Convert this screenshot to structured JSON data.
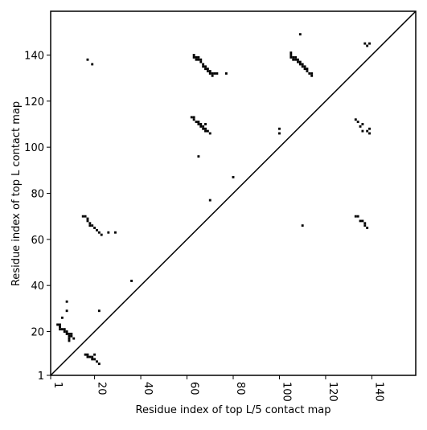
{
  "chart_data": {
    "type": "scatter",
    "xlabel": "Residue index of top L/5 contact map",
    "ylabel": "Residue index of top L contact map",
    "color": "#000000",
    "xlim": [
      1,
      159
    ],
    "ylim": [
      1,
      159
    ],
    "xticks": [
      1,
      20,
      40,
      60,
      80,
      100,
      120,
      140
    ],
    "yticks": [
      1,
      20,
      40,
      60,
      80,
      100,
      120,
      140
    ],
    "x": [
      63,
      64,
      64,
      65,
      66,
      67,
      68,
      68,
      69,
      70,
      71,
      72,
      73,
      77,
      63,
      65,
      66,
      67,
      69,
      70,
      71,
      105,
      105,
      105,
      106,
      107,
      107,
      108,
      108,
      109,
      109,
      110,
      110,
      111,
      111,
      112,
      112,
      113,
      114,
      114,
      106,
      109,
      17,
      19,
      137,
      138,
      139,
      62,
      63,
      63,
      64,
      65,
      65,
      66,
      66,
      67,
      67,
      68,
      68,
      68,
      69,
      70,
      65,
      80,
      70,
      100,
      100,
      133,
      134,
      136,
      135,
      136,
      138,
      139,
      139,
      15,
      16,
      17,
      17,
      18,
      18,
      19,
      20,
      21,
      22,
      23,
      26,
      29,
      36,
      110,
      133,
      134,
      135,
      136,
      137,
      137,
      138,
      8,
      8,
      6,
      5,
      4,
      5,
      5,
      6,
      7,
      7,
      8,
      8,
      9,
      10,
      9,
      10,
      9,
      11,
      9,
      16,
      17,
      17,
      18,
      19,
      19,
      20,
      20,
      21,
      22,
      22
    ],
    "values": [
      139,
      139,
      138,
      138,
      137,
      136,
      135,
      134,
      134,
      133,
      132,
      132,
      132,
      132,
      140,
      139,
      138,
      135,
      133,
      132,
      131,
      141,
      140,
      139,
      139,
      139,
      138,
      138,
      137,
      137,
      136,
      136,
      135,
      135,
      134,
      134,
      133,
      132,
      132,
      131,
      138,
      149,
      138,
      136,
      145,
      144,
      145,
      113,
      113,
      112,
      111,
      111,
      110,
      110,
      109,
      109,
      108,
      108,
      107,
      110,
      107,
      106,
      96,
      87,
      77,
      108,
      106,
      112,
      111,
      110,
      109,
      107,
      107,
      108,
      106,
      70,
      70,
      69,
      68,
      67,
      66,
      66,
      65,
      64,
      63,
      62,
      63,
      63,
      42,
      66,
      70,
      70,
      68,
      68,
      67,
      66,
      65,
      33,
      29,
      26,
      23,
      23,
      22,
      21,
      21,
      21,
      20,
      20,
      19,
      19,
      19,
      18,
      18,
      17,
      17,
      16,
      10,
      10,
      9,
      9,
      9,
      8,
      8,
      10,
      7,
      6,
      29
    ]
  }
}
